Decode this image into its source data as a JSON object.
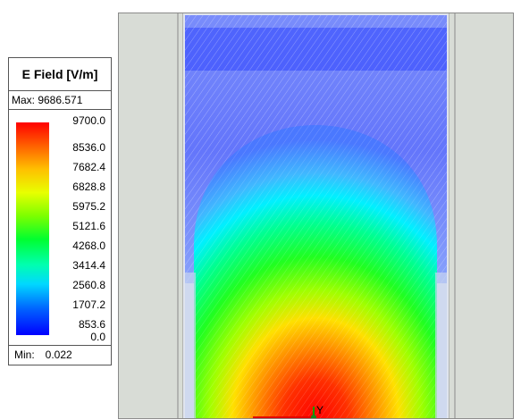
{
  "legend": {
    "title": "E Field [V/m]",
    "max_label": "Max: 9686.571",
    "min_label": "Min:",
    "min_value": "0.022",
    "ticks": [
      "9700.0",
      "8536.0",
      "7682.4",
      "6828.8",
      "5975.2",
      "5121.6",
      "4268.0",
      "3414.4",
      "2560.8",
      "1707.2",
      "853.6",
      "0.0"
    ],
    "colors": [
      "#ff0000",
      "#ff6000",
      "#ffc000",
      "#e8ff00",
      "#7cff00",
      "#00ff30",
      "#00ffb0",
      "#00d8ff",
      "#0060ff",
      "#0000ff"
    ]
  },
  "viewport": {
    "axis_label": "Y",
    "background_color": "#d8dcd6"
  }
}
